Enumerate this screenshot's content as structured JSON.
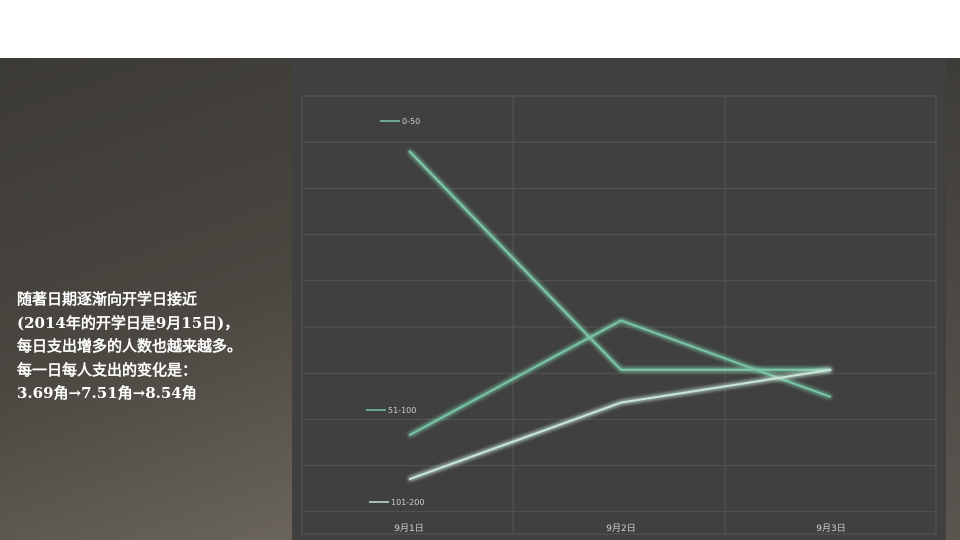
{
  "caption": {
    "lines": [
      "随著日期逐渐向开学日接近",
      "(2014年的开学日是9月15日)，",
      "每日支出增多的人数也越来越多。",
      "每一日每人支出的变化是：",
      "3.69角→7.51角→8.54角"
    ]
  },
  "chart_data": {
    "type": "line",
    "categories": [
      "9月1日",
      "9月2日",
      "9月3日"
    ],
    "series": [
      {
        "name": "0-50",
        "values": [
          50,
          10,
          10
        ],
        "color": "#7ec9a8"
      },
      {
        "name": "51-100",
        "values": [
          -2,
          19,
          5
        ],
        "color": "#78c4a4"
      },
      {
        "name": "101-200",
        "values": [
          -10,
          4,
          10
        ],
        "color": "#c8e6d8"
      }
    ],
    "ylim": [
      -20,
      60
    ],
    "grid": true,
    "title": "",
    "xlabel": "",
    "ylabel": ""
  }
}
